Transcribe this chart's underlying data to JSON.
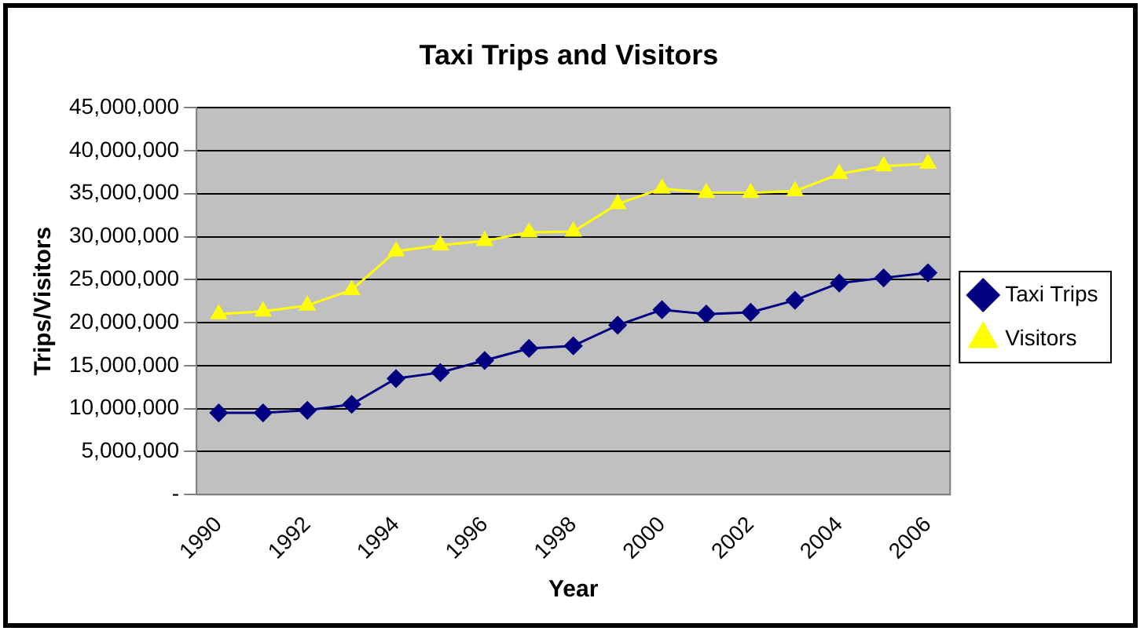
{
  "chart_data": {
    "type": "line",
    "title": "Taxi Trips and Visitors",
    "xlabel": "Year",
    "ylabel": "Trips/Visitors",
    "categories": [
      "1990",
      null,
      "1992",
      null,
      "1994",
      null,
      "1996",
      null,
      "1998",
      null,
      "2000",
      null,
      "2002",
      null,
      "2004",
      null,
      "2006"
    ],
    "series": [
      {
        "name": "Taxi Trips",
        "color": "#000080",
        "marker": "diamond",
        "values": [
          9500000,
          9500000,
          9800000,
          10500000,
          13500000,
          14200000,
          15600000,
          17000000,
          17300000,
          19700000,
          21500000,
          21000000,
          21200000,
          22600000,
          24600000,
          25200000,
          25800000
        ]
      },
      {
        "name": "Visitors",
        "color": "#ffff00",
        "marker": "triangle",
        "values": [
          21000000,
          21300000,
          22000000,
          23800000,
          28300000,
          29000000,
          29500000,
          30500000,
          30600000,
          33800000,
          35600000,
          35100000,
          35100000,
          35300000,
          37300000,
          38200000,
          38500000
        ]
      }
    ],
    "ylim": [
      0,
      45000000
    ],
    "yticks": [
      {
        "value": 0,
        "label": "-"
      },
      {
        "value": 5000000,
        "label": "5,000,000"
      },
      {
        "value": 10000000,
        "label": "10,000,000"
      },
      {
        "value": 15000000,
        "label": "15,000,000"
      },
      {
        "value": 20000000,
        "label": "20,000,000"
      },
      {
        "value": 25000000,
        "label": "25,000,000"
      },
      {
        "value": 30000000,
        "label": "30,000,000"
      },
      {
        "value": 35000000,
        "label": "35,000,000"
      },
      {
        "value": 40000000,
        "label": "40,000,000"
      },
      {
        "value": 45000000,
        "label": "45,000,000"
      }
    ],
    "grid": "y",
    "legend": "right"
  }
}
